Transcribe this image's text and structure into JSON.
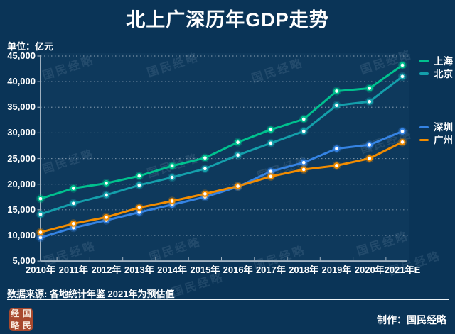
{
  "header": {
    "title": "北上广深历年GDP走势"
  },
  "chart": {
    "unit_label": "单位：亿元",
    "watermark": "国民经略"
  },
  "chart_data": {
    "type": "line",
    "title": "北上广深历年GDP走势",
    "unit": "亿元",
    "xlabel": "",
    "ylabel": "亿元",
    "ylim": [
      5000,
      45000
    ],
    "grid": "horizontal-dotted",
    "legend_position": "right-outside",
    "categories": [
      "2010年",
      "2011年",
      "2012年",
      "2013年",
      "2014年",
      "2015年",
      "2016年",
      "2017年",
      "2018年",
      "2019年",
      "2020年",
      "2021年E"
    ],
    "y_ticks": [
      45000,
      40000,
      35000,
      30000,
      25000,
      20000,
      15000,
      10000,
      5000
    ],
    "y_tick_labels": [
      "45,000",
      "40,000",
      "35,000",
      "30,000",
      "25,000",
      "20,000",
      "15,000",
      "10,000",
      "5,000"
    ],
    "series": [
      {
        "name": "上海",
        "slug": "shanghai",
        "color": "#00c18e",
        "values": [
          17166,
          19196,
          20182,
          21602,
          23568,
          25123,
          28179,
          30633,
          32680,
          38155,
          38701,
          43200
        ]
      },
      {
        "name": "北京",
        "slug": "beijing",
        "color": "#149fab",
        "values": [
          14114,
          16252,
          17879,
          19801,
          21331,
          23015,
          25669,
          28000,
          30320,
          35371,
          36103,
          41000
        ]
      },
      {
        "name": "深圳",
        "slug": "shenzhen",
        "color": "#3583e3",
        "values": [
          9582,
          11506,
          12950,
          14500,
          16002,
          17503,
          19493,
          22490,
          24222,
          26927,
          27670,
          30300
        ]
      },
      {
        "name": "广州",
        "slug": "guangzhou",
        "color": "#f28c00",
        "values": [
          10604,
          12303,
          13551,
          15420,
          16707,
          18100,
          19611,
          21503,
          22859,
          23629,
          25019,
          28200
        ]
      }
    ]
  },
  "footer": {
    "source": "数据来源: 各地统计年鉴  2021年为预估值",
    "credit": "制作：国民经略",
    "stamp_chars": [
      "经",
      "国",
      "略",
      "民"
    ]
  }
}
